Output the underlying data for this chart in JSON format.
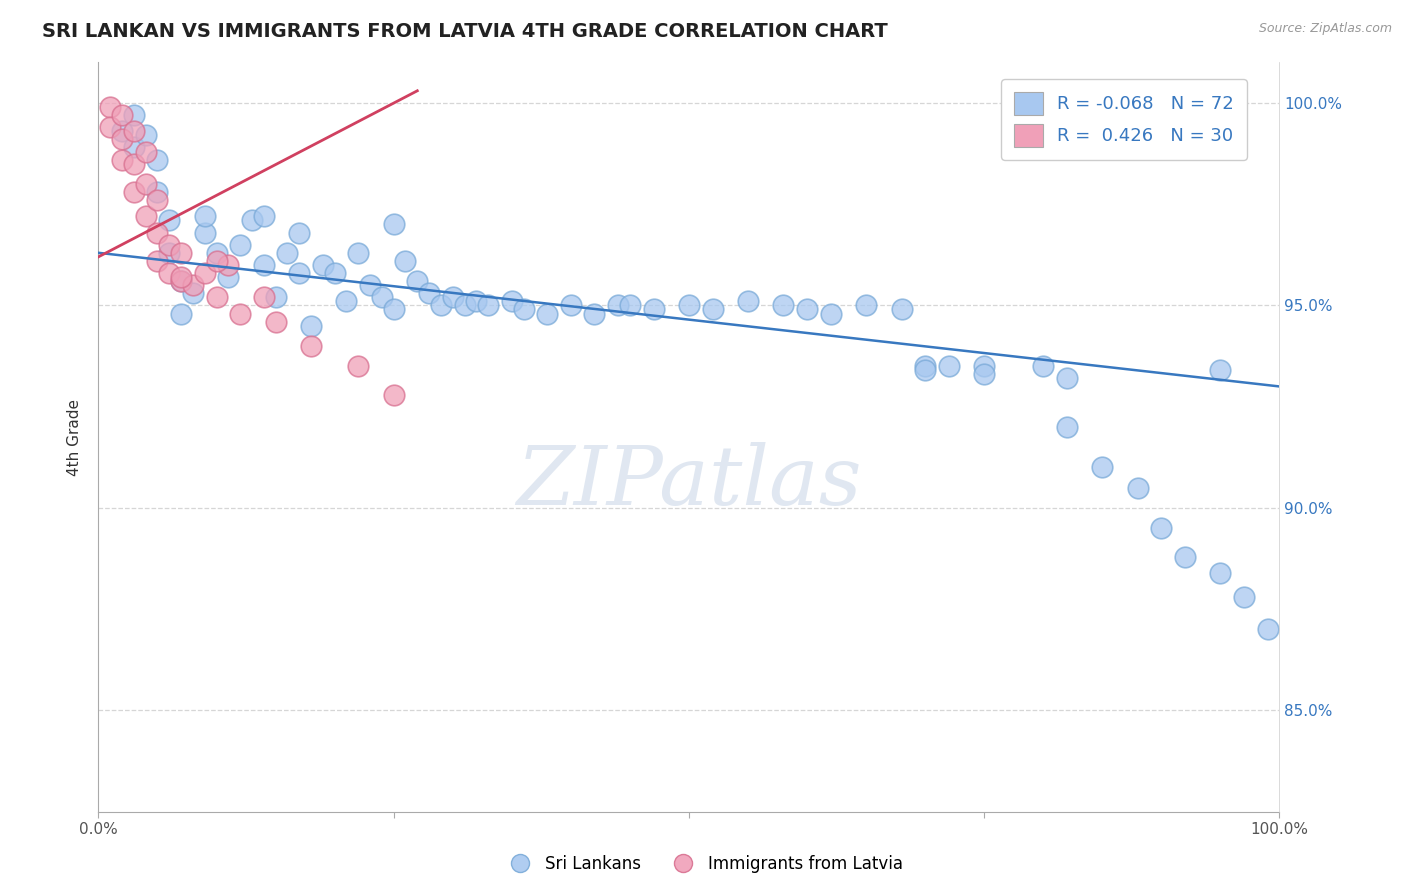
{
  "title": "SRI LANKAN VS IMMIGRANTS FROM LATVIA 4TH GRADE CORRELATION CHART",
  "source_text": "Source: ZipAtlas.com",
  "ylabel_label": "4th Grade",
  "legend_blue_r": "-0.068",
  "legend_blue_n": "72",
  "legend_pink_r": "0.426",
  "legend_pink_n": "30",
  "blue_color": "#a8c8f0",
  "pink_color": "#f0a0b8",
  "blue_edge_color": "#7aaad8",
  "pink_edge_color": "#d87090",
  "blue_line_color": "#3878c0",
  "pink_line_color": "#d04060",
  "watermark_color": "#ccd8e8",
  "blue_scatter_x": [
    0.02,
    0.03,
    0.03,
    0.04,
    0.05,
    0.05,
    0.06,
    0.06,
    0.07,
    0.07,
    0.08,
    0.09,
    0.09,
    0.1,
    0.11,
    0.12,
    0.13,
    0.14,
    0.15,
    0.16,
    0.17,
    0.18,
    0.19,
    0.2,
    0.21,
    0.22,
    0.23,
    0.24,
    0.25,
    0.26,
    0.27,
    0.28,
    0.29,
    0.3,
    0.31,
    0.32,
    0.33,
    0.35,
    0.36,
    0.38,
    0.4,
    0.42,
    0.44,
    0.45,
    0.47,
    0.5,
    0.52,
    0.55,
    0.58,
    0.6,
    0.62,
    0.65,
    0.68,
    0.7,
    0.72,
    0.75,
    0.8,
    0.82,
    0.85,
    0.88,
    0.9,
    0.92,
    0.95,
    0.97,
    0.99,
    0.7,
    0.75,
    0.82,
    0.95,
    0.17,
    0.25,
    0.14
  ],
  "blue_scatter_y": [
    0.993,
    0.989,
    0.997,
    0.992,
    0.986,
    0.978,
    0.971,
    0.963,
    0.956,
    0.948,
    0.953,
    0.968,
    0.972,
    0.963,
    0.957,
    0.965,
    0.971,
    0.96,
    0.952,
    0.963,
    0.958,
    0.945,
    0.96,
    0.958,
    0.951,
    0.963,
    0.955,
    0.952,
    0.949,
    0.961,
    0.956,
    0.953,
    0.95,
    0.952,
    0.95,
    0.951,
    0.95,
    0.951,
    0.949,
    0.948,
    0.95,
    0.948,
    0.95,
    0.95,
    0.949,
    0.95,
    0.949,
    0.951,
    0.95,
    0.949,
    0.948,
    0.95,
    0.949,
    0.935,
    0.935,
    0.935,
    0.935,
    0.92,
    0.91,
    0.905,
    0.895,
    0.888,
    0.884,
    0.878,
    0.87,
    0.934,
    0.933,
    0.932,
    0.934,
    0.968,
    0.97,
    0.972
  ],
  "pink_scatter_x": [
    0.01,
    0.01,
    0.02,
    0.02,
    0.02,
    0.03,
    0.03,
    0.03,
    0.04,
    0.04,
    0.04,
    0.05,
    0.05,
    0.05,
    0.06,
    0.06,
    0.07,
    0.07,
    0.08,
    0.09,
    0.1,
    0.11,
    0.12,
    0.14,
    0.15,
    0.18,
    0.22,
    0.25,
    0.1,
    0.07
  ],
  "pink_scatter_y": [
    0.999,
    0.994,
    0.997,
    0.991,
    0.986,
    0.993,
    0.985,
    0.978,
    0.988,
    0.98,
    0.972,
    0.976,
    0.968,
    0.961,
    0.965,
    0.958,
    0.963,
    0.956,
    0.955,
    0.958,
    0.952,
    0.96,
    0.948,
    0.952,
    0.946,
    0.94,
    0.935,
    0.928,
    0.961,
    0.957
  ],
  "blue_line_x": [
    0.0,
    1.0
  ],
  "blue_line_y": [
    0.963,
    0.93
  ],
  "pink_line_x": [
    0.0,
    0.27
  ],
  "pink_line_y": [
    0.962,
    1.003
  ],
  "xlim": [
    0.0,
    1.0
  ],
  "ylim": [
    0.825,
    1.01
  ],
  "yticks": [
    0.85,
    0.9,
    0.95,
    1.0
  ],
  "ytick_labels": [
    "85.0%",
    "90.0%",
    "95.0%",
    "100.0%"
  ],
  "xticks": [
    0.0,
    0.25,
    0.5,
    0.75,
    1.0
  ],
  "xtick_labels": [
    "0.0%",
    "",
    "",
    "",
    "100.0%"
  ]
}
